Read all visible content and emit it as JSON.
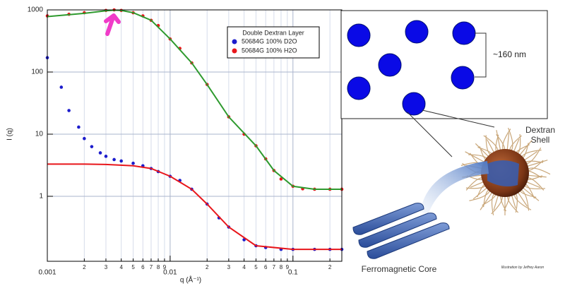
{
  "chart_data": {
    "type": "scatter",
    "xlabel": "q (Å⁻¹)",
    "ylabel": "I (q)",
    "xscale": "log",
    "yscale": "log",
    "xlim": [
      0.001,
      0.25
    ],
    "ylim": [
      0.09,
      1000
    ],
    "xticks": [
      0.001,
      {
        "value": 0.002,
        "label": "2"
      },
      {
        "value": 0.003,
        "label": "3"
      },
      {
        "value": 0.004,
        "label": "4"
      },
      {
        "value": 0.005,
        "label": "5"
      },
      {
        "value": 0.006,
        "label": "6"
      },
      {
        "value": 0.007,
        "label": "7"
      },
      {
        "value": 0.008,
        "label": "8"
      },
      {
        "value": 0.009,
        "label": "9"
      },
      0.01,
      {
        "value": 0.02,
        "label": "2"
      },
      {
        "value": 0.03,
        "label": "3"
      },
      {
        "value": 0.04,
        "label": "4"
      },
      {
        "value": 0.05,
        "label": "5"
      },
      {
        "value": 0.06,
        "label": "6"
      },
      {
        "value": 0.07,
        "label": "7"
      },
      {
        "value": 0.08,
        "label": "8"
      },
      {
        "value": 0.09,
        "label": "9"
      },
      0.1,
      {
        "value": 0.2,
        "label": "2"
      }
    ],
    "yticks": [
      1,
      10,
      100,
      1000
    ],
    "grid": true,
    "legend": "upper right",
    "legend_title": "Double Dextran Layer",
    "series": [
      {
        "name": "50684G 100% D2O",
        "color": "#1c1ccc",
        "marker": "circle",
        "x": [
          0.001,
          0.0013,
          0.0015,
          0.0018,
          0.002,
          0.0023,
          0.0027,
          0.003,
          0.0035,
          0.004,
          0.005,
          0.006,
          0.007,
          0.008,
          0.01,
          0.012,
          0.015,
          0.02,
          0.025,
          0.03,
          0.04,
          0.05,
          0.06,
          0.08,
          0.1,
          0.15,
          0.2,
          0.25
        ],
        "values": [
          170,
          57,
          24,
          13,
          8.5,
          6.3,
          5,
          4.4,
          3.9,
          3.7,
          3.4,
          3.1,
          2.8,
          2.5,
          2.1,
          1.8,
          1.3,
          0.75,
          0.45,
          0.32,
          0.2,
          0.16,
          0.15,
          0.14,
          0.14,
          0.14,
          0.14,
          0.14
        ]
      },
      {
        "name": "50684G 100% H2O",
        "color": "#e8161b",
        "marker": "circle",
        "x": [
          0.001,
          0.0015,
          0.002,
          0.003,
          0.0035,
          0.004,
          0.005,
          0.006,
          0.007,
          0.008,
          0.01,
          0.012,
          0.015,
          0.02,
          0.03,
          0.04,
          0.05,
          0.06,
          0.07,
          0.08,
          0.1,
          0.12,
          0.15,
          0.2,
          0.25
        ],
        "values": [
          800,
          850,
          900,
          980,
          1000,
          980,
          900,
          800,
          680,
          560,
          340,
          240,
          140,
          63,
          19,
          10,
          6.5,
          4,
          2.6,
          1.9,
          1.45,
          1.32,
          1.3,
          1.3,
          1.3
        ]
      },
      {
        "color": "#2e9a2e",
        "marker": "line",
        "x": [
          0.001,
          0.002,
          0.003,
          0.0035,
          0.004,
          0.005,
          0.007,
          0.01,
          0.015,
          0.02,
          0.03,
          0.05,
          0.07,
          0.1,
          0.15,
          0.25
        ],
        "values": [
          780,
          880,
          970,
          990,
          980,
          900,
          680,
          340,
          140,
          63,
          19,
          6.5,
          2.6,
          1.45,
          1.3,
          1.3
        ]
      },
      {
        "color": "#e8161b",
        "marker": "line",
        "x": [
          0.001,
          0.002,
          0.003,
          0.005,
          0.007,
          0.01,
          0.015,
          0.02,
          0.03,
          0.05,
          0.1,
          0.25
        ],
        "values": [
          3.3,
          3.3,
          3.25,
          3.1,
          2.8,
          2.1,
          1.3,
          0.75,
          0.32,
          0.16,
          0.14,
          0.14
        ]
      }
    ]
  },
  "diagram": {
    "scale_label": "~160 nm",
    "shell_label": "Dextran Shell",
    "core_label": "Ferromagnetic Core",
    "credit": "Illustration by Jeffrey Aaron"
  }
}
